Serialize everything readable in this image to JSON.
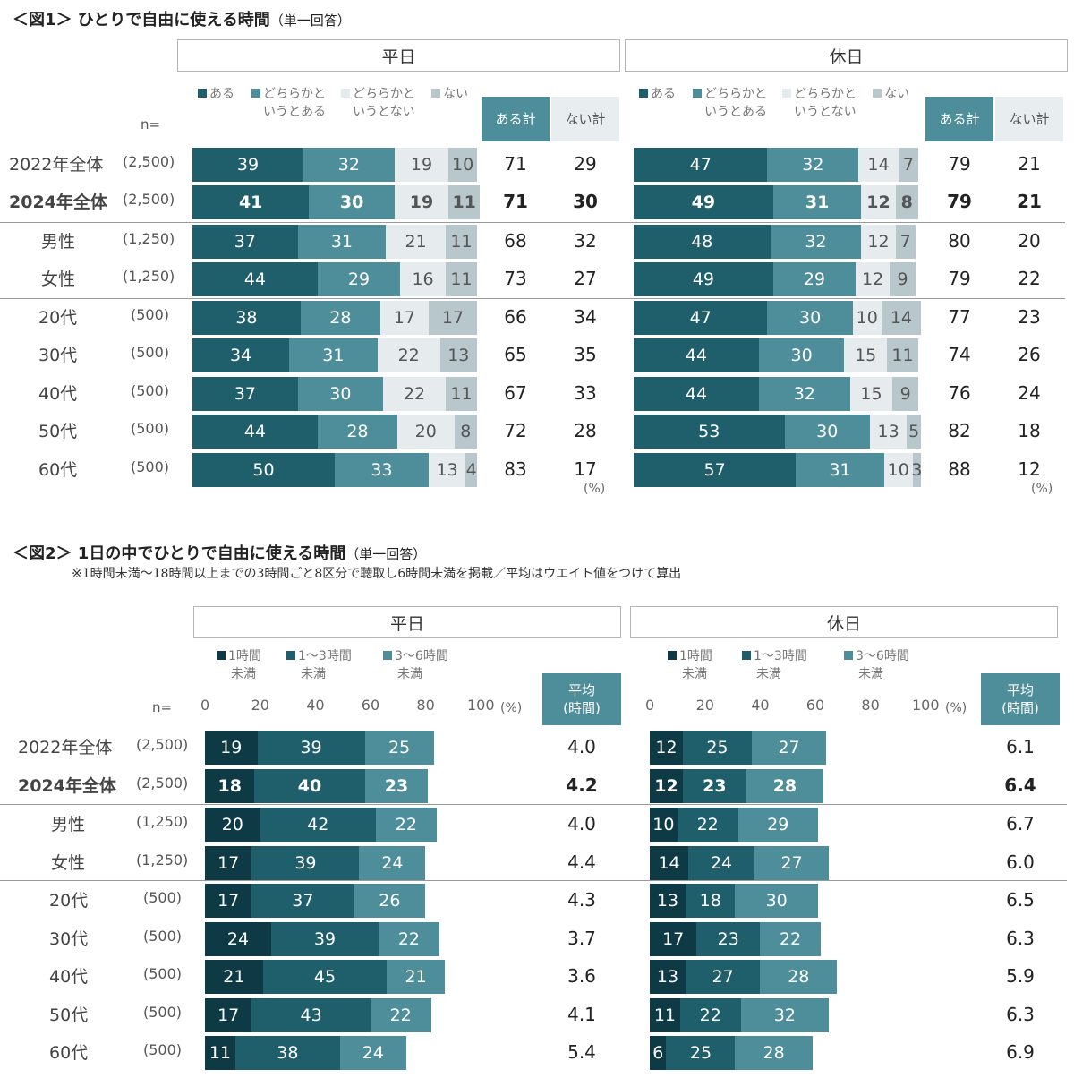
{
  "fig1": {
    "title": "＜図1＞ ひとりで自由に使える時間",
    "subtitle": "（単一回答）",
    "n_label": "n=",
    "percent_label": "(%)",
    "weekday_label": "平日",
    "holiday_label": "休日",
    "legend": [
      {
        "line1": "ある",
        "line2": "",
        "color": "#1f5f6b"
      },
      {
        "line1": "どちらかと",
        "line2": "いうとある",
        "color": "#4d8e9a"
      },
      {
        "line1": "どちらかと",
        "line2": "いうとない",
        "color": "#e6ecee"
      },
      {
        "line1": "ない",
        "line2": "",
        "color": "#b7c7cc"
      }
    ],
    "sum_headers": [
      "ある計",
      "ない計"
    ],
    "rows": [
      {
        "label": "2022年全体",
        "n": "(2,500)",
        "bold": false
      },
      {
        "label": "2024年全体",
        "n": "(2,500)",
        "bold": true
      },
      {
        "label": "男性",
        "n": "(1,250)",
        "bold": false
      },
      {
        "label": "女性",
        "n": "(1,250)",
        "bold": false
      },
      {
        "label": "20代",
        "n": "(500)",
        "bold": false
      },
      {
        "label": "30代",
        "n": "(500)",
        "bold": false
      },
      {
        "label": "40代",
        "n": "(500)",
        "bold": false
      },
      {
        "label": "50代",
        "n": "(500)",
        "bold": false
      },
      {
        "label": "60代",
        "n": "(500)",
        "bold": false
      }
    ]
  },
  "fig2": {
    "title": "＜図2＞ 1日の中でひとりで自由に使える時間",
    "subtitle": "（単一回答）",
    "note": "※1時間未満～18時間以上までの3時間ごと8区分で聴取し6時間未満を掲載／平均はウエイト値をつけて算出",
    "n_label": "n=",
    "percent_label": "(%)",
    "weekday_label": "平日",
    "holiday_label": "休日",
    "legend": [
      {
        "line1": "1時間",
        "line2": "未満",
        "color": "#0e3a45"
      },
      {
        "line1": "1～3時間",
        "line2": "未満",
        "color": "#1f5f6b"
      },
      {
        "line1": "3～6時間",
        "line2": "未満",
        "color": "#4d8e9a"
      }
    ],
    "avg_header_line1": "平均",
    "avg_header_line2": "(時間)",
    "axis_ticks": [
      "0",
      "20",
      "40",
      "60",
      "80",
      "100"
    ],
    "rows": [
      {
        "label": "2022年全体",
        "n": "(2,500)",
        "bold": false
      },
      {
        "label": "2024年全体",
        "n": "(2,500)",
        "bold": true
      },
      {
        "label": "男性",
        "n": "(1,250)",
        "bold": false
      },
      {
        "label": "女性",
        "n": "(1,250)",
        "bold": false
      },
      {
        "label": "20代",
        "n": "(500)",
        "bold": false
      },
      {
        "label": "30代",
        "n": "(500)",
        "bold": false
      },
      {
        "label": "40代",
        "n": "(500)",
        "bold": false
      },
      {
        "label": "50代",
        "n": "(500)",
        "bold": false
      },
      {
        "label": "60代",
        "n": "(500)",
        "bold": false
      }
    ]
  },
  "chart_data": [
    {
      "type": "bar",
      "stacked": true,
      "orientation": "horizontal",
      "title": "ひとりで自由に使える時間（平日）",
      "categories": [
        "2022年全体",
        "2024年全体",
        "男性",
        "女性",
        "20代",
        "30代",
        "40代",
        "50代",
        "60代"
      ],
      "series": [
        {
          "name": "ある",
          "values": [
            39,
            41,
            37,
            44,
            38,
            34,
            37,
            44,
            50
          ]
        },
        {
          "name": "どちらかというとある",
          "values": [
            32,
            30,
            31,
            29,
            28,
            31,
            30,
            28,
            33
          ]
        },
        {
          "name": "どちらかというとない",
          "values": [
            19,
            19,
            21,
            16,
            17,
            22,
            22,
            20,
            13
          ]
        },
        {
          "name": "ない",
          "values": [
            10,
            11,
            11,
            11,
            17,
            13,
            11,
            8,
            4
          ]
        }
      ],
      "totals": {
        "ある計": [
          71,
          71,
          68,
          73,
          66,
          65,
          67,
          72,
          83
        ],
        "ない計": [
          29,
          30,
          32,
          27,
          34,
          35,
          33,
          28,
          17
        ]
      },
      "ylim": [
        0,
        100
      ]
    },
    {
      "type": "bar",
      "stacked": true,
      "orientation": "horizontal",
      "title": "ひとりで自由に使える時間（休日）",
      "categories": [
        "2022年全体",
        "2024年全体",
        "男性",
        "女性",
        "20代",
        "30代",
        "40代",
        "50代",
        "60代"
      ],
      "series": [
        {
          "name": "ある",
          "values": [
            47,
            49,
            48,
            49,
            47,
            44,
            44,
            53,
            57
          ]
        },
        {
          "name": "どちらかというとある",
          "values": [
            32,
            31,
            32,
            29,
            30,
            30,
            32,
            30,
            31
          ]
        },
        {
          "name": "どちらかというとない",
          "values": [
            14,
            12,
            12,
            12,
            10,
            15,
            15,
            13,
            10
          ]
        },
        {
          "name": "ない",
          "values": [
            7,
            8,
            7,
            9,
            14,
            11,
            9,
            5,
            3
          ]
        }
      ],
      "totals": {
        "ある計": [
          79,
          79,
          80,
          79,
          77,
          74,
          76,
          82,
          88
        ],
        "ない計": [
          21,
          21,
          20,
          22,
          23,
          26,
          24,
          18,
          12
        ]
      },
      "ylim": [
        0,
        100
      ]
    },
    {
      "type": "bar",
      "stacked": true,
      "orientation": "horizontal",
      "title": "1日の中でひとりで自由に使える時間（平日）",
      "categories": [
        "2022年全体",
        "2024年全体",
        "男性",
        "女性",
        "20代",
        "30代",
        "40代",
        "50代",
        "60代"
      ],
      "series": [
        {
          "name": "1時間未満",
          "values": [
            19,
            18,
            20,
            17,
            17,
            24,
            21,
            17,
            11
          ]
        },
        {
          "name": "1～3時間未満",
          "values": [
            39,
            40,
            42,
            39,
            37,
            39,
            45,
            43,
            38
          ]
        },
        {
          "name": "3～6時間未満",
          "values": [
            25,
            23,
            22,
            24,
            26,
            22,
            21,
            22,
            24
          ]
        }
      ],
      "average_hours": [
        "4.0",
        "4.2",
        "4.0",
        "4.4",
        "4.3",
        "3.7",
        "3.6",
        "4.1",
        "5.4"
      ],
      "xlim": [
        0,
        100
      ]
    },
    {
      "type": "bar",
      "stacked": true,
      "orientation": "horizontal",
      "title": "1日の中でひとりで自由に使える時間（休日）",
      "categories": [
        "2022年全体",
        "2024年全体",
        "男性",
        "女性",
        "20代",
        "30代",
        "40代",
        "50代",
        "60代"
      ],
      "series": [
        {
          "name": "1時間未満",
          "values": [
            12,
            12,
            10,
            14,
            13,
            17,
            13,
            11,
            6
          ]
        },
        {
          "name": "1～3時間未満",
          "values": [
            25,
            23,
            22,
            24,
            18,
            23,
            27,
            22,
            25
          ]
        },
        {
          "name": "3～6時間未満",
          "values": [
            27,
            28,
            29,
            27,
            30,
            22,
            28,
            32,
            28
          ]
        }
      ],
      "average_hours": [
        "6.1",
        "6.4",
        "6.7",
        "6.0",
        "6.5",
        "6.3",
        "5.9",
        "6.3",
        "6.9"
      ],
      "xlim": [
        0,
        100
      ]
    }
  ]
}
